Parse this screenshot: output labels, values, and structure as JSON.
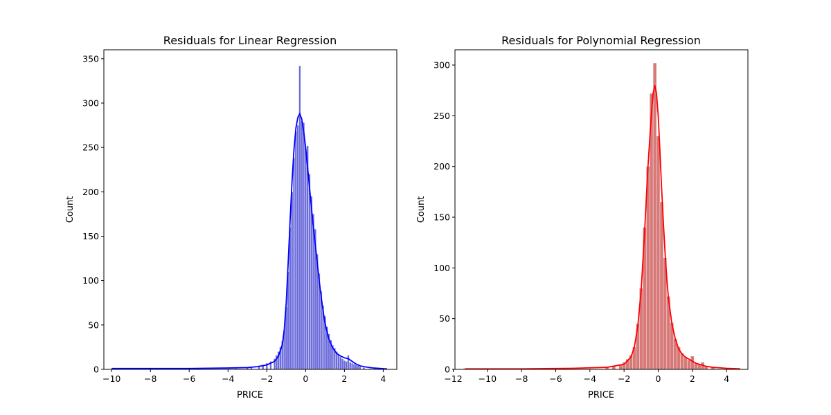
{
  "chart_data": [
    {
      "type": "histogram",
      "title": "Residuals for Linear Regression",
      "xlabel": "PRICE",
      "ylabel": "Count",
      "xlim": [
        -10.4,
        4.7
      ],
      "ylim": [
        0,
        360
      ],
      "xticks": [
        -10,
        -8,
        -6,
        -4,
        -2,
        0,
        2,
        4
      ],
      "yticks": [
        0,
        50,
        100,
        150,
        200,
        250,
        300,
        350
      ],
      "bar_color": "#5b5bd6",
      "kde_color": "#0000ff",
      "kde_curve": true,
      "bins": [
        {
          "x": -9.9,
          "count": 1
        },
        {
          "x": -3.6,
          "count": 1
        },
        {
          "x": -3.0,
          "count": 2
        },
        {
          "x": -2.8,
          "count": 3
        },
        {
          "x": -2.4,
          "count": 4
        },
        {
          "x": -2.2,
          "count": 5
        },
        {
          "x": -2.0,
          "count": 7
        },
        {
          "x": -1.8,
          "count": 9
        },
        {
          "x": -1.6,
          "count": 12
        },
        {
          "x": -1.5,
          "count": 16
        },
        {
          "x": -1.4,
          "count": 20
        },
        {
          "x": -1.3,
          "count": 25
        },
        {
          "x": -1.2,
          "count": 32
        },
        {
          "x": -1.1,
          "count": 45
        },
        {
          "x": -1.0,
          "count": 70
        },
        {
          "x": -0.9,
          "count": 110
        },
        {
          "x": -0.8,
          "count": 160
        },
        {
          "x": -0.7,
          "count": 200
        },
        {
          "x": -0.6,
          "count": 238
        },
        {
          "x": -0.5,
          "count": 268
        },
        {
          "x": -0.4,
          "count": 275
        },
        {
          "x": -0.3,
          "count": 342
        },
        {
          "x": -0.2,
          "count": 280
        },
        {
          "x": -0.1,
          "count": 278
        },
        {
          "x": 0.0,
          "count": 250
        },
        {
          "x": 0.1,
          "count": 252
        },
        {
          "x": 0.2,
          "count": 220
        },
        {
          "x": 0.3,
          "count": 195
        },
        {
          "x": 0.4,
          "count": 175
        },
        {
          "x": 0.5,
          "count": 158
        },
        {
          "x": 0.6,
          "count": 130
        },
        {
          "x": 0.7,
          "count": 108
        },
        {
          "x": 0.8,
          "count": 88
        },
        {
          "x": 0.9,
          "count": 72
        },
        {
          "x": 1.0,
          "count": 60
        },
        {
          "x": 1.1,
          "count": 48
        },
        {
          "x": 1.2,
          "count": 40
        },
        {
          "x": 1.3,
          "count": 33
        },
        {
          "x": 1.4,
          "count": 27
        },
        {
          "x": 1.5,
          "count": 24
        },
        {
          "x": 1.6,
          "count": 20
        },
        {
          "x": 1.7,
          "count": 17
        },
        {
          "x": 1.8,
          "count": 14
        },
        {
          "x": 1.9,
          "count": 12
        },
        {
          "x": 2.0,
          "count": 10
        },
        {
          "x": 2.1,
          "count": 9
        },
        {
          "x": 2.2,
          "count": 16
        },
        {
          "x": 2.3,
          "count": 8
        },
        {
          "x": 2.4,
          "count": 7
        },
        {
          "x": 2.5,
          "count": 6
        },
        {
          "x": 2.6,
          "count": 5
        },
        {
          "x": 2.7,
          "count": 4
        },
        {
          "x": 2.8,
          "count": 3
        },
        {
          "x": 3.0,
          "count": 2
        },
        {
          "x": 3.3,
          "count": 1
        },
        {
          "x": 3.6,
          "count": 1
        },
        {
          "x": 4.1,
          "count": 1
        }
      ],
      "bin_width": 0.1,
      "kde": [
        [
          -10.0,
          1
        ],
        [
          -6.0,
          1
        ],
        [
          -4.0,
          1.5
        ],
        [
          -3.0,
          2
        ],
        [
          -2.5,
          3
        ],
        [
          -2.0,
          5
        ],
        [
          -1.6,
          9
        ],
        [
          -1.4,
          15
        ],
        [
          -1.2,
          28
        ],
        [
          -1.1,
          45
        ],
        [
          -1.0,
          75
        ],
        [
          -0.9,
          120
        ],
        [
          -0.8,
          168
        ],
        [
          -0.7,
          212
        ],
        [
          -0.6,
          248
        ],
        [
          -0.5,
          272
        ],
        [
          -0.4,
          284
        ],
        [
          -0.3,
          288
        ],
        [
          -0.2,
          282
        ],
        [
          -0.1,
          268
        ],
        [
          0.0,
          250
        ],
        [
          0.1,
          228
        ],
        [
          0.2,
          205
        ],
        [
          0.3,
          182
        ],
        [
          0.4,
          160
        ],
        [
          0.5,
          140
        ],
        [
          0.6,
          120
        ],
        [
          0.7,
          100
        ],
        [
          0.8,
          82
        ],
        [
          0.9,
          66
        ],
        [
          1.0,
          52
        ],
        [
          1.2,
          34
        ],
        [
          1.4,
          24
        ],
        [
          1.6,
          18
        ],
        [
          1.8,
          15
        ],
        [
          2.0,
          13
        ],
        [
          2.2,
          12
        ],
        [
          2.4,
          9
        ],
        [
          2.6,
          6
        ],
        [
          2.8,
          4
        ],
        [
          3.0,
          3
        ],
        [
          3.5,
          1.5
        ],
        [
          4.2,
          0.5
        ]
      ]
    },
    {
      "type": "histogram",
      "title": "Residuals for Polynomial Regression",
      "xlabel": "PRICE",
      "ylabel": "Count",
      "xlim": [
        -11.9,
        5.25
      ],
      "ylim": [
        0,
        315
      ],
      "xticks": [
        -12,
        -10,
        -8,
        -6,
        -4,
        -2,
        0,
        2,
        4
      ],
      "yticks": [
        0,
        50,
        100,
        150,
        200,
        250,
        300
      ],
      "bar_color": "#d46a6a",
      "kde_color": "#ff0000",
      "kde_curve": true,
      "bins": [
        {
          "x": -11.3,
          "count": 1
        },
        {
          "x": -6.0,
          "count": 1
        },
        {
          "x": -3.0,
          "count": 2
        },
        {
          "x": -2.6,
          "count": 3
        },
        {
          "x": -2.2,
          "count": 5
        },
        {
          "x": -2.0,
          "count": 7
        },
        {
          "x": -1.8,
          "count": 10
        },
        {
          "x": -1.6,
          "count": 14
        },
        {
          "x": -1.4,
          "count": 22
        },
        {
          "x": -1.2,
          "count": 45
        },
        {
          "x": -1.0,
          "count": 80
        },
        {
          "x": -0.8,
          "count": 140
        },
        {
          "x": -0.6,
          "count": 200
        },
        {
          "x": -0.4,
          "count": 272
        },
        {
          "x": -0.2,
          "count": 302
        },
        {
          "x": 0.0,
          "count": 230
        },
        {
          "x": 0.2,
          "count": 165
        },
        {
          "x": 0.4,
          "count": 110
        },
        {
          "x": 0.6,
          "count": 72
        },
        {
          "x": 0.8,
          "count": 46
        },
        {
          "x": 1.0,
          "count": 30
        },
        {
          "x": 1.2,
          "count": 22
        },
        {
          "x": 1.4,
          "count": 16
        },
        {
          "x": 1.6,
          "count": 12
        },
        {
          "x": 1.8,
          "count": 9
        },
        {
          "x": 2.0,
          "count": 13
        },
        {
          "x": 2.2,
          "count": 6
        },
        {
          "x": 2.4,
          "count": 5
        },
        {
          "x": 2.6,
          "count": 7
        },
        {
          "x": 2.8,
          "count": 3
        },
        {
          "x": 3.2,
          "count": 2
        },
        {
          "x": 4.0,
          "count": 1
        },
        {
          "x": 4.7,
          "count": 1
        }
      ],
      "bin_width": 0.2,
      "kde": [
        [
          -11.3,
          0.5
        ],
        [
          -8.0,
          0.5
        ],
        [
          -5.0,
          1
        ],
        [
          -3.0,
          2
        ],
        [
          -2.0,
          5
        ],
        [
          -1.6,
          12
        ],
        [
          -1.4,
          22
        ],
        [
          -1.2,
          42
        ],
        [
          -1.0,
          78
        ],
        [
          -0.8,
          135
        ],
        [
          -0.6,
          200
        ],
        [
          -0.4,
          252
        ],
        [
          -0.3,
          272
        ],
        [
          -0.2,
          280
        ],
        [
          -0.1,
          272
        ],
        [
          0.0,
          250
        ],
        [
          0.1,
          215
        ],
        [
          0.2,
          178
        ],
        [
          0.3,
          145
        ],
        [
          0.4,
          115
        ],
        [
          0.5,
          90
        ],
        [
          0.6,
          70
        ],
        [
          0.8,
          45
        ],
        [
          1.0,
          30
        ],
        [
          1.2,
          20
        ],
        [
          1.4,
          15
        ],
        [
          1.6,
          12
        ],
        [
          1.8,
          10
        ],
        [
          2.0,
          8
        ],
        [
          2.2,
          6
        ],
        [
          2.4,
          5
        ],
        [
          2.6,
          4
        ],
        [
          2.8,
          3
        ],
        [
          3.2,
          2
        ],
        [
          4.0,
          1
        ],
        [
          4.8,
          0.5
        ]
      ]
    }
  ]
}
